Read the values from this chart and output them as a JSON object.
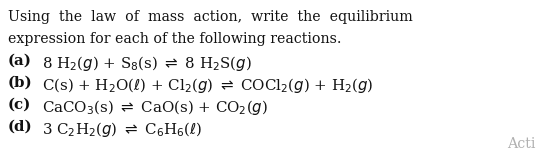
{
  "bg_color": "#ffffff",
  "text_color": "#111111",
  "gray_color": "#b0b0b0",
  "line1": "Using  the  law  of  mass  action,  write  the  equilibrium",
  "line2": "expression for each of the following reactions.",
  "reactions": [
    {
      "label": "(a)",
      "text": "8 H$_2$($g$) + S$_8$(s) $\\rightleftharpoons$ 8 H$_2$S($g$)"
    },
    {
      "label": "(b)",
      "text": "C(s) + H$_2$O($\\ell$) + Cl$_2$($g$) $\\rightleftharpoons$ COCl$_2$($g$) + H$_2$($g$)"
    },
    {
      "label": "(c)",
      "text": "CaCO$_3$(s) $\\rightleftharpoons$ CaO(s) + CO$_2$($g$)"
    },
    {
      "label": "(d)",
      "text": "3 C$_2$H$_2$($g$) $\\rightleftharpoons$ C$_6$H$_6$($\\ell$)"
    }
  ],
  "acti_text": "Acti",
  "figsize": [
    5.45,
    1.63
  ],
  "dpi": 100,
  "title_fontsize": 10.2,
  "body_fontsize": 10.8
}
